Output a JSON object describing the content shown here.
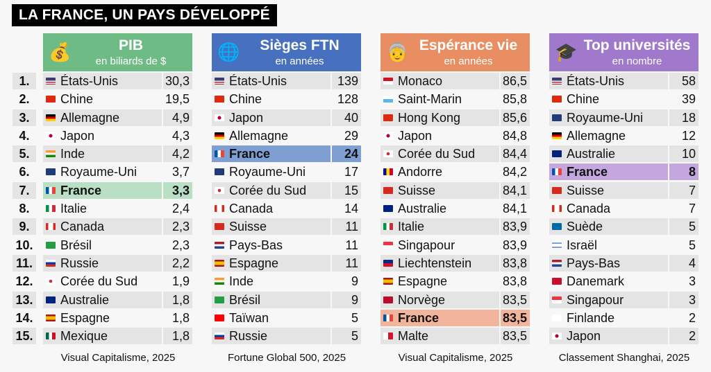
{
  "title": "LA FRANCE, UN PAYS DÉVELOPPÉ",
  "ranks": [
    "1.",
    "2.",
    "3.",
    "4.",
    "5.",
    "6.",
    "7.",
    "8.",
    "9.",
    "10.",
    "11.",
    "12.",
    "13.",
    "14.",
    "15."
  ],
  "columns": [
    {
      "title": "PIB",
      "subtitle": "en biliards de $",
      "icon": "money-bag-icon",
      "glyph": "💰",
      "color": "#6fbb86",
      "highlight": "#b9dfc4",
      "source": "Visual Capitalisme, 2025",
      "rows": [
        [
          "États-Unis",
          "30,3",
          "us"
        ],
        [
          "Chine",
          "19,5",
          "cn"
        ],
        [
          "Allemagne",
          "4,9",
          "de"
        ],
        [
          "Japon",
          "4,3",
          "jp"
        ],
        [
          "Inde",
          "4,2",
          "in"
        ],
        [
          "Royaume-Uni",
          "3,7",
          "gb"
        ],
        [
          "France",
          "3,3",
          "fr"
        ],
        [
          "Italie",
          "2,4",
          "it"
        ],
        [
          "Canada",
          "2,3",
          "ca"
        ],
        [
          "Brésil",
          "2,3",
          "br"
        ],
        [
          "Russie",
          "2,2",
          "ru"
        ],
        [
          "Corée du Sud",
          "1,9",
          "kr"
        ],
        [
          "Australie",
          "1,8",
          "au"
        ],
        [
          "Espagne",
          "1,8",
          "es"
        ],
        [
          "Mexique",
          "1,8",
          "mx"
        ]
      ]
    },
    {
      "title": "Sièges FTN",
      "subtitle": "en années",
      "icon": "globe-icon",
      "glyph": "🌐",
      "color": "#4770bf",
      "highlight": "#7f9fd2",
      "source": "Fortune Global 500, 2025",
      "rows": [
        [
          "États-Unis",
          "139",
          "us"
        ],
        [
          "Chine",
          "128",
          "cn"
        ],
        [
          "Japon",
          "40",
          "jp"
        ],
        [
          "Allemagne",
          "29",
          "de"
        ],
        [
          "France",
          "24",
          "fr"
        ],
        [
          "Royaume-Uni",
          "17",
          "gb"
        ],
        [
          "Corée du Sud",
          "15",
          "kr"
        ],
        [
          "Canada",
          "14",
          "ca"
        ],
        [
          "Suisse",
          "11",
          "ch"
        ],
        [
          "Pays-Bas",
          "11",
          "nl"
        ],
        [
          "Espagne",
          "11",
          "es"
        ],
        [
          "Inde",
          "9",
          "in"
        ],
        [
          "Brésil",
          "9",
          "br"
        ],
        [
          "Taïwan",
          "5",
          "tw"
        ],
        [
          "Russie",
          "5",
          "ru"
        ]
      ]
    },
    {
      "title": "Espérance vie",
      "subtitle": "en années",
      "icon": "old-woman-icon",
      "glyph": "👵",
      "color": "#e88e62",
      "highlight": "#f2b59b",
      "source": "Visual Capitalisme, 2025",
      "rows": [
        [
          "Monaco",
          "86,5",
          "mc"
        ],
        [
          "Saint-Marin",
          "85,8",
          "sm"
        ],
        [
          "Hong Kong",
          "85,6",
          "hk"
        ],
        [
          "Japon",
          "84,8",
          "jp"
        ],
        [
          "Corée du Sud",
          "84,4",
          "kr"
        ],
        [
          "Andorre",
          "84,2",
          "ad"
        ],
        [
          "Suisse",
          "84,1",
          "ch"
        ],
        [
          "Australie",
          "84,1",
          "au"
        ],
        [
          "Italie",
          "83,9",
          "it"
        ],
        [
          "Singapour",
          "83,9",
          "sg"
        ],
        [
          "Liechtenstein",
          "83,8",
          "li"
        ],
        [
          "Espagne",
          "83,8",
          "es"
        ],
        [
          "Norvège",
          "83,5",
          "no"
        ],
        [
          "France",
          "83,5",
          "fr"
        ],
        [
          "Malte",
          "83,5",
          "mt"
        ]
      ]
    },
    {
      "title": "Top universités",
      "subtitle": "en nombre",
      "icon": "graduation-cap-icon",
      "glyph": "🎓",
      "color": "#a079cc",
      "highlight": "#c3a7dd",
      "source": "Classement Shanghai, 2025",
      "rows": [
        [
          "États-Unis",
          "58",
          "us"
        ],
        [
          "Chine",
          "39",
          "cn"
        ],
        [
          "Royaume-Uni",
          "18",
          "gb"
        ],
        [
          "Allemagne",
          "12",
          "de"
        ],
        [
          "Australie",
          "10",
          "au"
        ],
        [
          "France",
          "8",
          "fr"
        ],
        [
          "Suisse",
          "7",
          "ch"
        ],
        [
          "Canada",
          "7",
          "ca"
        ],
        [
          "Suède",
          "5",
          "se"
        ],
        [
          "Israël",
          "5",
          "il"
        ],
        [
          "Pays-Bas",
          "4",
          "nl"
        ],
        [
          "Danemark",
          "3",
          "dk"
        ],
        [
          "Singapour",
          "3",
          "sg"
        ],
        [
          "Finlande",
          "2",
          "fi"
        ],
        [
          "Japon",
          "2",
          "jp"
        ]
      ]
    }
  ]
}
